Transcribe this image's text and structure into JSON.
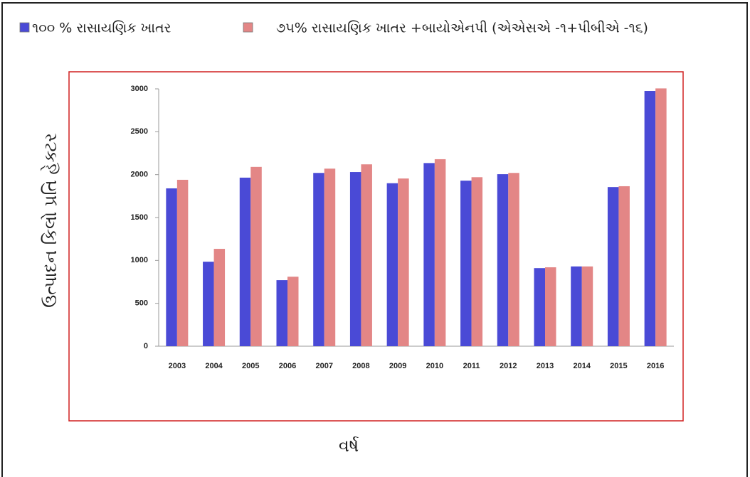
{
  "chart_data": {
    "type": "bar",
    "legend_note": null,
    "ylabel": "ઉત્પાદન કિલો પ્રતિ હેક્ટર",
    "xlabel": "વર્ષ",
    "categories": [
      "2003",
      "2004",
      "2005",
      "2006",
      "2007",
      "2008",
      "2009",
      "2010",
      "2011",
      "2012",
      "2013",
      "2014",
      "2015",
      "2016"
    ],
    "series": [
      {
        "name": "૧૦૦ % રાસાયણિક ખાતર",
        "color": "#4a4ad6",
        "values": [
          1840,
          985,
          1965,
          770,
          2020,
          2030,
          1900,
          2135,
          1930,
          2005,
          910,
          930,
          1855,
          2975
        ]
      },
      {
        "name": "૭૫% રાસાયણિક ખાતર +બાયોએનપી (એએસએ -૧+પીબીએ -૧૬)",
        "color": "#e38686",
        "values": [
          1940,
          1135,
          2090,
          810,
          2070,
          2120,
          1955,
          2180,
          1970,
          2020,
          920,
          930,
          1865,
          3005
        ]
      }
    ],
    "ylim": [
      0,
      3000
    ],
    "yticks": [
      0,
      500,
      1000,
      1500,
      2000,
      2500,
      3000
    ],
    "grid": false
  }
}
